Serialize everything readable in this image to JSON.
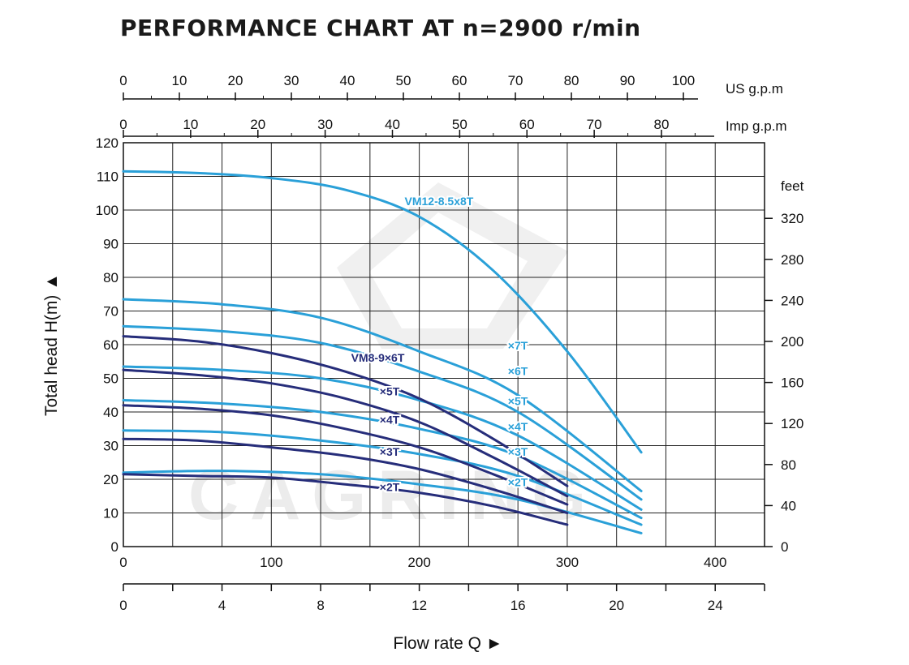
{
  "chart_data": {
    "type": "line",
    "title": "PERFORMANCE CHART AT n=2900 r/min",
    "ylabel": "Total head H(m) ▲",
    "xlabel": "Flow rate Q ►",
    "ylim": [
      0,
      120
    ],
    "xlim_m3h": [
      0,
      26
    ],
    "grid": true,
    "legend": "none (labels placed on curves)",
    "axes": {
      "left_ticks": [
        "0",
        "10",
        "20",
        "30",
        "40",
        "50",
        "60",
        "70",
        "80",
        "90",
        "100",
        "110",
        "120"
      ],
      "right_unit": "feet",
      "right_ticks": [
        "0",
        "40",
        "80",
        "120",
        "160",
        "200",
        "240",
        "280",
        "320"
      ],
      "top_us_unit": "US g.p.m",
      "top_us_ticks": [
        "0",
        "10",
        "20",
        "30",
        "40",
        "50",
        "60",
        "70",
        "80",
        "90",
        "100"
      ],
      "top_imp_unit": "Imp g.p.m",
      "top_imp_ticks": [
        "0",
        "10",
        "20",
        "30",
        "40",
        "50",
        "60",
        "70",
        "80"
      ],
      "bottom_lmin_ticks": [
        "0",
        "100",
        "200",
        "300",
        "400"
      ],
      "bottom_m3h_ticks": [
        "0",
        "4",
        "8",
        "12",
        "16",
        "20",
        "24"
      ]
    },
    "series": [
      {
        "name": "VM12-8.5x8T",
        "label": "VM12-8.5x8T",
        "color": "#2aa0d8",
        "points": [
          [
            0,
            111.5
          ],
          [
            3,
            111
          ],
          [
            6,
            109.5
          ],
          [
            9,
            106
          ],
          [
            12,
            98
          ],
          [
            15,
            82
          ],
          [
            18,
            58
          ],
          [
            21,
            28
          ]
        ]
      },
      {
        "name": "x7T",
        "label": "×7T",
        "color": "#2aa0d8",
        "points": [
          [
            0,
            73.5
          ],
          [
            4,
            72
          ],
          [
            8,
            68
          ],
          [
            12,
            58
          ],
          [
            16,
            45
          ],
          [
            21,
            16.5
          ]
        ]
      },
      {
        "name": "x6T",
        "label": "×6T",
        "color": "#2aa0d8",
        "points": [
          [
            0,
            65.5
          ],
          [
            4,
            64
          ],
          [
            8,
            60.5
          ],
          [
            12,
            52
          ],
          [
            16,
            40
          ],
          [
            21,
            14
          ]
        ]
      },
      {
        "name": "x5T",
        "label": "×5T",
        "color": "#2aa0d8",
        "points": [
          [
            0,
            53.5
          ],
          [
            4,
            52.5
          ],
          [
            8,
            50
          ],
          [
            12,
            43.5
          ],
          [
            16,
            33
          ],
          [
            21,
            11
          ]
        ]
      },
      {
        "name": "x4T",
        "label": "×4T",
        "color": "#2aa0d8",
        "points": [
          [
            0,
            43.5
          ],
          [
            4,
            42.5
          ],
          [
            8,
            40
          ],
          [
            12,
            35
          ],
          [
            16,
            27
          ],
          [
            21,
            8.5
          ]
        ]
      },
      {
        "name": "x3T",
        "label": "×3T",
        "color": "#2aa0d8",
        "points": [
          [
            0,
            34.5
          ],
          [
            4,
            34
          ],
          [
            8,
            31.5
          ],
          [
            12,
            27.5
          ],
          [
            16,
            21
          ],
          [
            21,
            6.5
          ]
        ]
      },
      {
        "name": "x2T",
        "label": "×2T",
        "color": "#2aa0d8",
        "points": [
          [
            0,
            22
          ],
          [
            4,
            22.5
          ],
          [
            8,
            21.5
          ],
          [
            12,
            18.5
          ],
          [
            16,
            14
          ],
          [
            21,
            4
          ]
        ]
      },
      {
        "name": "VM8-9x6T",
        "label": "VM8-9×6T",
        "color": "#262d7a",
        "points": [
          [
            0,
            62.5
          ],
          [
            3,
            61
          ],
          [
            6,
            57.5
          ],
          [
            9,
            52
          ],
          [
            12,
            44
          ],
          [
            15,
            32
          ],
          [
            18,
            18
          ]
        ]
      },
      {
        "name": "x5T (VM8)",
        "label": "×5T",
        "color": "#262d7a",
        "points": [
          [
            0,
            52.5
          ],
          [
            3,
            51
          ],
          [
            6,
            48.5
          ],
          [
            9,
            44
          ],
          [
            12,
            37
          ],
          [
            15,
            26.5
          ],
          [
            18,
            15
          ]
        ]
      },
      {
        "name": "x4T (VM8)",
        "label": "×4T",
        "color": "#262d7a",
        "points": [
          [
            0,
            42
          ],
          [
            3,
            41
          ],
          [
            6,
            39
          ],
          [
            9,
            35
          ],
          [
            12,
            29.5
          ],
          [
            15,
            21.5
          ],
          [
            18,
            12.5
          ]
        ]
      },
      {
        "name": "x3T (VM8)",
        "label": "×3T",
        "color": "#262d7a",
        "points": [
          [
            0,
            32
          ],
          [
            3,
            31.5
          ],
          [
            6,
            29.5
          ],
          [
            9,
            27
          ],
          [
            12,
            23
          ],
          [
            15,
            17
          ],
          [
            18,
            10
          ]
        ]
      },
      {
        "name": "x2T (VM8)",
        "label": "×2T",
        "color": "#262d7a",
        "points": [
          [
            0,
            21.5
          ],
          [
            3,
            21
          ],
          [
            6,
            20.5
          ],
          [
            9,
            18.5
          ],
          [
            12,
            16
          ],
          [
            15,
            12
          ],
          [
            18,
            6.5
          ]
        ]
      }
    ],
    "watermark": "CAGRING"
  }
}
